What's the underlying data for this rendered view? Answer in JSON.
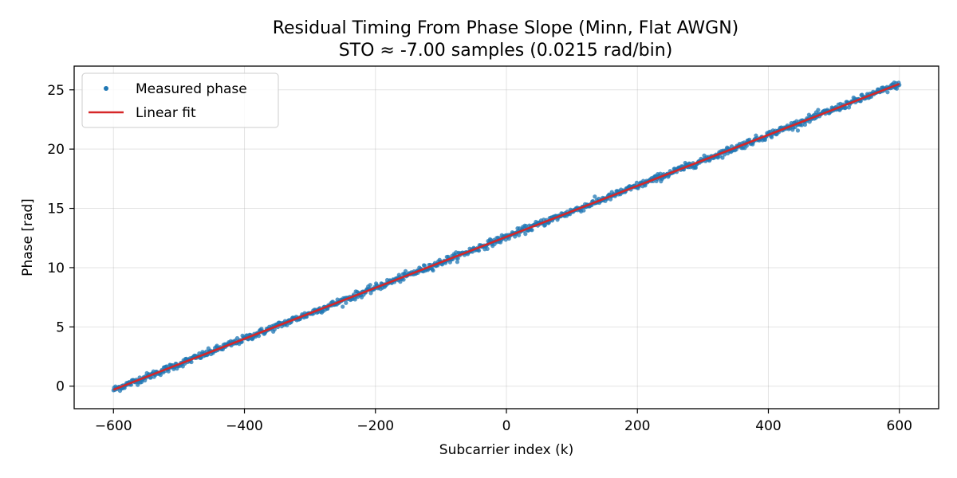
{
  "chart_data": {
    "type": "scatter",
    "title": "Residual Timing From Phase Slope (Minn, Flat AWGN)",
    "subtitle": "STO ≈ -7.00 samples (0.0215 rad/bin)",
    "xlabel": "Subcarrier index (k)",
    "ylabel": "Phase [rad]",
    "xlim": [
      -660,
      660
    ],
    "ylim": [
      -1.9,
      27.0
    ],
    "xticks": [
      -600,
      -400,
      -200,
      0,
      200,
      400,
      600
    ],
    "xtick_labels": [
      "−600",
      "−400",
      "−200",
      "0",
      "200",
      "400",
      "600"
    ],
    "yticks": [
      0,
      5,
      10,
      15,
      20,
      25
    ],
    "ytick_labels": [
      "0",
      "5",
      "10",
      "15",
      "20",
      "25"
    ],
    "grid": true,
    "legend_position": "top-left",
    "series": [
      {
        "name": "Measured phase",
        "kind": "scatter",
        "color": "#1f77b4",
        "x_start": -600,
        "x_end": 600,
        "x_step": 1,
        "slope": 0.0215,
        "intercept": 12.6,
        "noise_std": 0.15
      },
      {
        "name": "Linear fit",
        "kind": "line",
        "color": "#d62728",
        "x": [
          -600,
          600
        ],
        "y": [
          -0.3,
          25.5
        ]
      }
    ]
  }
}
